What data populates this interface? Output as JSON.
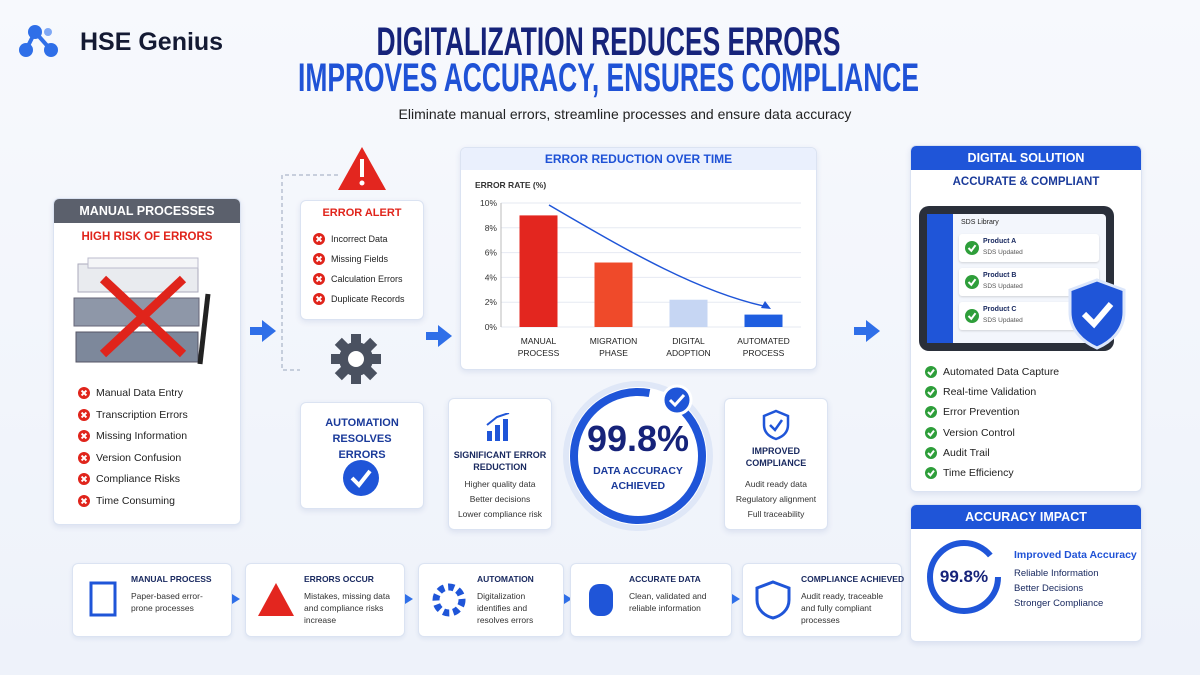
{
  "brand": "HSE Genius",
  "header": {
    "title_line1": "DIGITALIZATION REDUCES ERRORS",
    "title_line2": "IMPROVES ACCURACY, ENSURES COMPLIANCE",
    "subtitle": "Eliminate manual errors, streamline processes and ensure data accuracy"
  },
  "manual": {
    "title": "MANUAL PROCESSES",
    "subtitle": "HIGH RISK OF ERRORS",
    "items": [
      "Manual Data Entry",
      "Transcription Errors",
      "Missing Information",
      "Version Confusion",
      "Compliance Risks",
      "Time Consuming"
    ]
  },
  "error_alert": {
    "title": "ERROR ALERT",
    "items": [
      "Incorrect Data",
      "Missing Fields",
      "Calculation Errors",
      "Duplicate Records"
    ]
  },
  "automation": {
    "title": "AUTOMATION RESOLVES ERRORS"
  },
  "chart_data": {
    "type": "bar",
    "title": "ERROR REDUCTION OVER TIME",
    "y_label": "ERROR RATE (%)",
    "categories": [
      "MANUAL PROCESS",
      "MIGRATION PHASE",
      "DIGITAL ADOPTION",
      "AUTOMATED PROCESS"
    ],
    "values": [
      9,
      5.2,
      2.2,
      1
    ],
    "colors": [
      "#e3261f",
      "#ef4a2a",
      "#c6d6f3",
      "#1f5ee0"
    ],
    "ylim": [
      0,
      10
    ],
    "yticks": [
      {
        "value": 0,
        "label": "0%"
      },
      {
        "value": 2,
        "label": "2%"
      },
      {
        "value": 4,
        "label": "4%"
      },
      {
        "value": 6,
        "label": "6%"
      },
      {
        "value": 8,
        "label": "8%"
      },
      {
        "value": 10,
        "label": "10%"
      }
    ],
    "grid": true
  },
  "stats": {
    "left": {
      "title": "SIGNIFICANT ERROR REDUCTION",
      "items": [
        "Higher quality data",
        "Better decisions",
        "Lower compliance risk"
      ]
    },
    "center": {
      "value": "99.8%",
      "label": "DATA ACCURACY ACHIEVED"
    },
    "right": {
      "title": "IMPROVED COMPLIANCE",
      "items": [
        "Audit ready data",
        "Regulatory alignment",
        "Full traceability"
      ]
    }
  },
  "digital": {
    "title": "DIGITAL SOLUTION",
    "subtitle": "ACCURATE & COMPLIANT",
    "screen": {
      "header": "SDS Library",
      "products": [
        {
          "name": "Product A",
          "status": "SDS Updated"
        },
        {
          "name": "Product B",
          "status": "SDS Updated"
        },
        {
          "name": "Product C",
          "status": "SDS Updated"
        }
      ]
    },
    "items": [
      "Automated Data Capture",
      "Real-time Validation",
      "Error Prevention",
      "Version Control",
      "Audit Trail",
      "Time Efficiency"
    ]
  },
  "impact": {
    "title": "ACCURACY IMPACT",
    "value": "99.8%",
    "items": [
      "Improved Data Accuracy",
      "Reliable Information",
      "Better Decisions",
      "Stronger Compliance"
    ]
  },
  "flow": [
    {
      "title": "MANUAL PROCESS",
      "text": "Paper-based error-prone processes"
    },
    {
      "title": "ERRORS OCCUR",
      "text": "Mistakes, missing data and compliance risks increase"
    },
    {
      "title": "AUTOMATION",
      "text": "Digitalization identifies and resolves errors"
    },
    {
      "title": "ACCURATE DATA",
      "text": "Clean, validated and reliable information"
    },
    {
      "title": "COMPLIANCE ACHIEVED",
      "text": "Audit ready, traceable and fully compliant processes"
    }
  ]
}
